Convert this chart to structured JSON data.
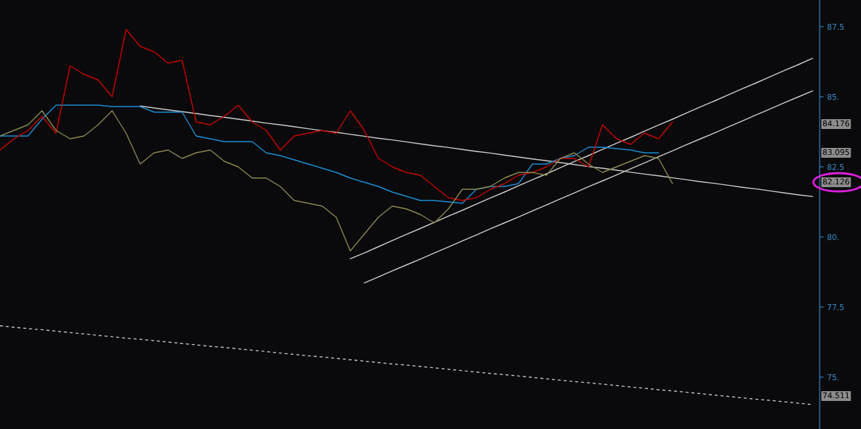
{
  "chart_data": {
    "type": "line",
    "categories": [
      null,
      null,
      null,
      null,
      null,
      null,
      null,
      null,
      null,
      null,
      null,
      null,
      null,
      null,
      null,
      null,
      null,
      null,
      null,
      null,
      null,
      null,
      null,
      null,
      null,
      null,
      null,
      null,
      null,
      null,
      null,
      null,
      null,
      null,
      null,
      null,
      null,
      null,
      null,
      null,
      null,
      null,
      null,
      null,
      null,
      null,
      null,
      null,
      null,
      null,
      null,
      null,
      null,
      null,
      null,
      null,
      null,
      null,
      null
    ],
    "ylim": [
      73.15,
      88.45
    ],
    "yticks": [
      {
        "value": 75,
        "label": "75."
      },
      {
        "value": 77.5,
        "label": "77.5"
      },
      {
        "value": 80,
        "label": "80."
      },
      {
        "value": 82.5,
        "label": "82.5"
      },
      {
        "value": 85,
        "label": "85."
      },
      {
        "value": 87.5,
        "label": "87.5"
      }
    ],
    "tick_labels": "y",
    "legend": false,
    "grid": false,
    "series": [
      {
        "color": "#c8c8c8",
        "line_style": "dashed",
        "values": [
          76.83,
          76.78,
          76.73,
          76.69,
          76.64,
          76.59,
          76.54,
          76.49,
          76.44,
          76.39,
          76.35,
          76.3,
          76.25,
          76.2,
          76.15,
          76.1,
          76.06,
          76.01,
          75.96,
          75.91,
          75.86,
          75.81,
          75.76,
          75.72,
          75.67,
          75.62,
          75.57,
          75.52,
          75.47,
          75.43,
          75.38,
          75.33,
          75.28,
          75.23,
          75.18,
          75.13,
          75.09,
          75.04,
          74.99,
          74.94,
          74.89,
          74.84,
          74.8,
          74.75,
          74.7,
          74.65,
          74.6,
          74.55,
          74.51,
          74.46,
          74.41,
          74.36,
          74.31,
          74.26,
          74.21,
          74.17,
          74.12,
          74.07,
          74.02
        ]
      },
      {
        "color": "#d0d0d0",
        "line_style": "solid",
        "values": [
          null,
          null,
          null,
          null,
          null,
          null,
          null,
          null,
          null,
          null,
          84.67,
          84.6,
          84.53,
          84.47,
          84.4,
          84.33,
          84.27,
          84.2,
          84.13,
          84.06,
          84.0,
          83.93,
          83.86,
          83.79,
          83.73,
          83.66,
          83.59,
          83.52,
          83.46,
          83.39,
          83.32,
          83.25,
          83.19,
          83.12,
          83.05,
          82.99,
          82.92,
          82.85,
          82.78,
          82.72,
          82.65,
          82.58,
          82.51,
          82.45,
          82.38,
          82.31,
          82.24,
          82.18,
          82.11,
          82.04,
          81.97,
          81.91,
          81.84,
          81.77,
          81.71,
          81.64,
          81.57,
          81.5,
          81.44
        ]
      },
      {
        "color": "#d0d0d0",
        "line_style": "solid",
        "values": [
          null,
          null,
          null,
          null,
          null,
          null,
          null,
          null,
          null,
          null,
          null,
          null,
          null,
          null,
          null,
          null,
          null,
          null,
          null,
          null,
          null,
          null,
          null,
          null,
          null,
          79.22,
          79.43,
          79.65,
          79.87,
          80.09,
          80.3,
          80.52,
          80.74,
          80.95,
          81.17,
          81.39,
          81.6,
          81.82,
          82.04,
          82.25,
          82.47,
          82.69,
          82.9,
          83.12,
          83.34,
          83.55,
          83.77,
          83.99,
          84.2,
          84.42,
          84.64,
          84.85,
          85.07,
          85.29,
          85.5,
          85.72,
          85.94,
          86.15,
          86.37
        ]
      },
      {
        "color": "#d0d0d0",
        "line_style": "solid",
        "values": [
          null,
          null,
          null,
          null,
          null,
          null,
          null,
          null,
          null,
          null,
          null,
          null,
          null,
          null,
          null,
          null,
          null,
          null,
          null,
          null,
          null,
          null,
          null,
          null,
          null,
          null,
          78.36,
          78.57,
          78.79,
          79.0,
          79.21,
          79.43,
          79.64,
          79.86,
          80.07,
          80.29,
          80.5,
          80.71,
          80.93,
          81.14,
          81.36,
          81.57,
          81.79,
          82.0,
          82.21,
          82.43,
          82.64,
          82.86,
          83.07,
          83.29,
          83.5,
          83.71,
          83.93,
          84.14,
          84.36,
          84.57,
          84.79,
          85.0,
          85.21
        ]
      },
      {
        "color": "#1e8fd8",
        "line_style": "solid",
        "values": [
          83.6,
          83.6,
          83.6,
          84.2,
          84.7,
          84.7,
          84.7,
          84.7,
          84.65,
          84.65,
          84.65,
          84.45,
          84.45,
          84.45,
          83.6,
          83.5,
          83.4,
          83.4,
          83.4,
          83.0,
          82.9,
          82.75,
          82.6,
          82.45,
          82.3,
          82.1,
          81.95,
          81.8,
          81.6,
          81.45,
          81.3,
          81.3,
          81.25,
          81.2,
          81.7,
          81.8,
          81.8,
          81.9,
          82.6,
          82.6,
          82.8,
          82.9,
          83.2,
          83.2,
          83.15,
          83.1,
          83.0,
          83.0,
          null,
          null,
          null,
          null,
          null,
          null,
          null,
          null,
          null,
          null,
          null
        ]
      },
      {
        "color": "#d00000",
        "line_style": "solid",
        "values": [
          83.1,
          83.5,
          83.8,
          84.3,
          83.7,
          86.1,
          85.8,
          85.6,
          85.0,
          87.4,
          86.8,
          86.6,
          86.2,
          86.3,
          84.1,
          84.0,
          84.3,
          84.7,
          84.1,
          83.8,
          83.1,
          83.6,
          83.7,
          83.8,
          83.7,
          84.5,
          83.8,
          82.8,
          82.5,
          82.3,
          82.2,
          81.8,
          81.4,
          81.3,
          81.4,
          81.7,
          81.9,
          82.2,
          82.3,
          82.5,
          82.8,
          82.8,
          82.5,
          84.0,
          83.5,
          83.3,
          83.7,
          83.5,
          84.1,
          null,
          null,
          null,
          null,
          null,
          null,
          null,
          null,
          null,
          null
        ]
      },
      {
        "color": "#8c8a4e",
        "line_style": "solid",
        "values": [
          83.6,
          83.8,
          84.0,
          84.5,
          83.8,
          83.5,
          83.6,
          84.0,
          84.5,
          83.7,
          82.6,
          83.0,
          83.1,
          82.8,
          83.0,
          83.1,
          82.7,
          82.5,
          82.1,
          82.1,
          81.8,
          81.3,
          81.2,
          81.1,
          80.7,
          79.5,
          80.1,
          80.7,
          81.1,
          81.0,
          80.8,
          80.5,
          81.0,
          81.7,
          81.7,
          81.8,
          82.1,
          82.3,
          82.3,
          82.2,
          82.8,
          83.0,
          82.6,
          82.3,
          82.5,
          82.7,
          82.9,
          82.8,
          81.9,
          null,
          null,
          null,
          null,
          null,
          null,
          null,
          null,
          null,
          null
        ]
      }
    ],
    "annotations": [
      "84.176",
      "83.095",
      "82.126",
      "74.511"
    ]
  }
}
